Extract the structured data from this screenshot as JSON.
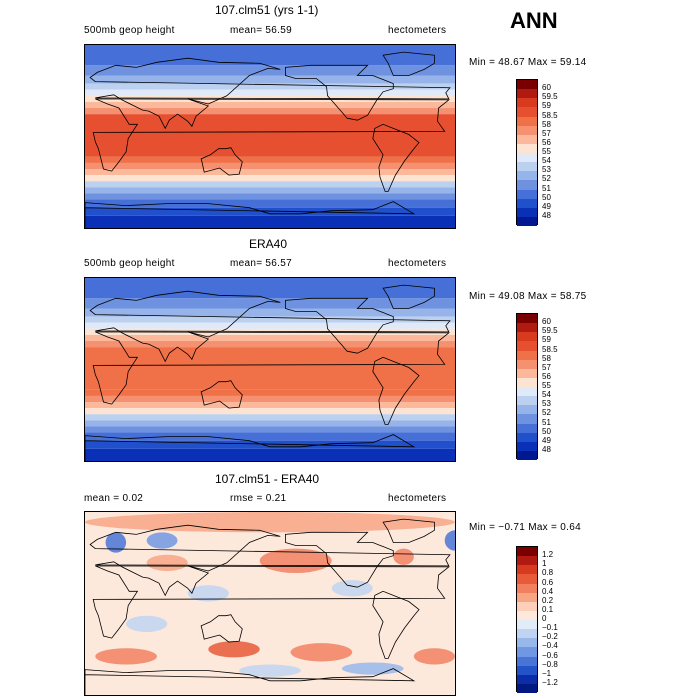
{
  "season": "ANN",
  "panels": [
    {
      "title": "107.clm51 (yrs 1-1)",
      "left_label": "500mb geop height",
      "mid_label": "mean=  56.59",
      "units": "hectometers",
      "minmax": "Min =  48.67 Max =  59.14",
      "kind": "abs",
      "colorbar_labels": [
        "60",
        "59.5",
        "59",
        "58.5",
        "58",
        "57",
        "56",
        "55",
        "54",
        "53",
        "52",
        "51",
        "50",
        "49",
        "48"
      ]
    },
    {
      "title": "ERA40",
      "left_label": "500mb geop height",
      "mid_label": "mean=  56.57",
      "units": "hectometers",
      "minmax": "Min =  49.08 Max =  58.75",
      "kind": "abs",
      "colorbar_labels": [
        "60",
        "59.5",
        "59",
        "58.5",
        "58",
        "57",
        "56",
        "55",
        "54",
        "53",
        "52",
        "51",
        "50",
        "49",
        "48"
      ]
    },
    {
      "title": "107.clm51 - ERA40",
      "left_label": "mean =   0.02",
      "mid_label": "rmse =   0.21",
      "units": "hectometers",
      "minmax": "Min = −0.71 Max =   0.64",
      "kind": "diff",
      "colorbar_labels": [
        "1.2",
        "1",
        "0.8",
        "0.6",
        "0.4",
        "0.2",
        "0.1",
        "0",
        "−0.1",
        "−0.2",
        "−0.4",
        "−0.6",
        "−0.8",
        "−1",
        "−1.2"
      ]
    }
  ],
  "colors": {
    "abs_scale": [
      "#7a0000",
      "#b01a10",
      "#d83a20",
      "#e65030",
      "#f07048",
      "#f59070",
      "#fbb89a",
      "#fde3d2",
      "#dfe9f7",
      "#bcd0f0",
      "#96b4ea",
      "#6e92e0",
      "#4670d8",
      "#2050cc",
      "#0a30b8",
      "#001890"
    ],
    "diff_scale": [
      "#7a0000",
      "#b01a10",
      "#d83a20",
      "#e85a38",
      "#f28060",
      "#f8a585",
      "#fcd0b8",
      "#fde8dc",
      "#e2ecf8",
      "#c0d4f2",
      "#98b8ec",
      "#7098e2",
      "#4874d8",
      "#2452c8",
      "#0a2ea8",
      "#001880"
    ]
  }
}
